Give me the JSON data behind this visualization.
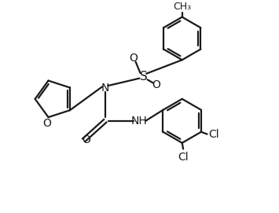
{
  "bg_color": "#ffffff",
  "line_color": "#1a1a1a",
  "line_width": 1.6,
  "font_size": 10,
  "figsize": [
    3.55,
    2.71
  ],
  "dpi": 100,
  "xlim": [
    0,
    10
  ],
  "ylim": [
    0,
    7.62
  ]
}
